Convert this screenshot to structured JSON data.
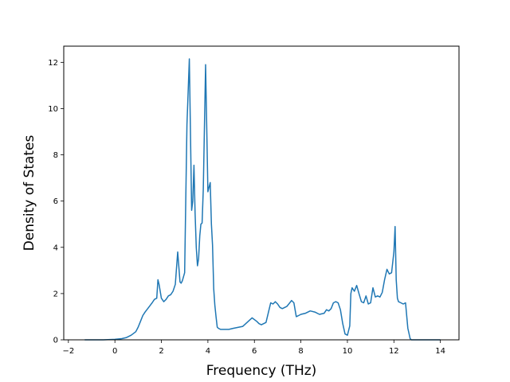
{
  "chart_data": {
    "type": "line",
    "title": "",
    "xlabel": "Frequency (THz)",
    "ylabel": "Density of States",
    "xlim": [
      -2.2,
      14.8
    ],
    "ylim": [
      0,
      12.7
    ],
    "x_ticks": [
      -2,
      0,
      2,
      4,
      6,
      8,
      10,
      12,
      14
    ],
    "y_ticks": [
      0,
      2,
      4,
      6,
      8,
      10,
      12
    ],
    "x_tick_labels": [
      "−2",
      "0",
      "2",
      "4",
      "6",
      "8",
      "10",
      "12",
      "14"
    ],
    "y_tick_labels": [
      "0",
      "2",
      "4",
      "6",
      "8",
      "10",
      "12"
    ],
    "grid": false,
    "line_color": "#1f77b4",
    "series": [
      {
        "x": [
          -1.3,
          -0.5,
          0.0,
          0.3,
          0.5,
          0.7,
          0.9,
          1.0,
          1.1,
          1.2,
          1.3,
          1.45,
          1.6,
          1.7,
          1.8,
          1.85,
          1.9,
          2.0,
          2.1,
          2.2,
          2.3,
          2.4,
          2.5,
          2.6,
          2.7,
          2.8,
          2.85,
          2.9,
          3.0,
          3.1,
          3.2,
          3.3,
          3.35,
          3.4,
          3.45,
          3.5,
          3.55,
          3.6,
          3.65,
          3.7,
          3.75,
          3.8,
          3.9,
          4.0,
          4.1,
          4.15,
          4.2,
          4.25,
          4.3,
          4.35,
          4.4,
          4.45,
          4.55,
          4.7,
          4.9,
          5.1,
          5.5,
          5.9,
          6.1,
          6.2,
          6.3,
          6.5,
          6.7,
          6.8,
          6.9,
          7.0,
          7.1,
          7.2,
          7.4,
          7.6,
          7.7,
          7.8,
          7.9,
          8.0,
          8.2,
          8.4,
          8.6,
          8.8,
          9.0,
          9.1,
          9.2,
          9.3,
          9.4,
          9.5,
          9.6,
          9.7,
          9.8,
          9.9,
          10.0,
          10.1,
          10.15,
          10.2,
          10.3,
          10.4,
          10.5,
          10.6,
          10.7,
          10.8,
          10.9,
          11.0,
          11.1,
          11.2,
          11.3,
          11.4,
          11.5,
          11.6,
          11.7,
          11.8,
          11.9,
          12.0,
          12.05,
          12.1,
          12.15,
          12.2,
          12.3,
          12.4,
          12.5,
          12.6,
          12.7,
          12.75,
          12.8,
          13.0,
          14.0
        ],
        "y": [
          0,
          0,
          0.02,
          0.05,
          0.1,
          0.2,
          0.35,
          0.55,
          0.8,
          1.05,
          1.2,
          1.4,
          1.6,
          1.75,
          1.8,
          2.6,
          2.4,
          1.8,
          1.65,
          1.75,
          1.9,
          1.95,
          2.1,
          2.4,
          3.8,
          2.5,
          2.45,
          2.55,
          2.9,
          9.3,
          12.15,
          5.6,
          6.0,
          7.55,
          5.5,
          4.0,
          3.2,
          3.5,
          4.5,
          5.0,
          5.05,
          6.5,
          11.9,
          6.4,
          6.8,
          5.0,
          4.1,
          2.2,
          1.5,
          1.0,
          0.55,
          0.5,
          0.45,
          0.45,
          0.45,
          0.5,
          0.58,
          0.95,
          0.8,
          0.7,
          0.65,
          0.75,
          1.6,
          1.55,
          1.65,
          1.55,
          1.4,
          1.35,
          1.45,
          1.7,
          1.6,
          1.0,
          1.05,
          1.1,
          1.15,
          1.25,
          1.2,
          1.1,
          1.15,
          1.3,
          1.25,
          1.35,
          1.6,
          1.65,
          1.6,
          1.3,
          0.7,
          0.25,
          0.2,
          0.6,
          2.0,
          2.25,
          2.1,
          2.35,
          2.0,
          1.65,
          1.6,
          1.9,
          1.55,
          1.6,
          2.25,
          1.85,
          1.9,
          1.85,
          2.05,
          2.6,
          3.05,
          2.85,
          2.9,
          3.8,
          4.9,
          2.6,
          1.8,
          1.65,
          1.6,
          1.55,
          1.6,
          0.5,
          0.05,
          0,
          0,
          0,
          0
        ]
      }
    ]
  }
}
